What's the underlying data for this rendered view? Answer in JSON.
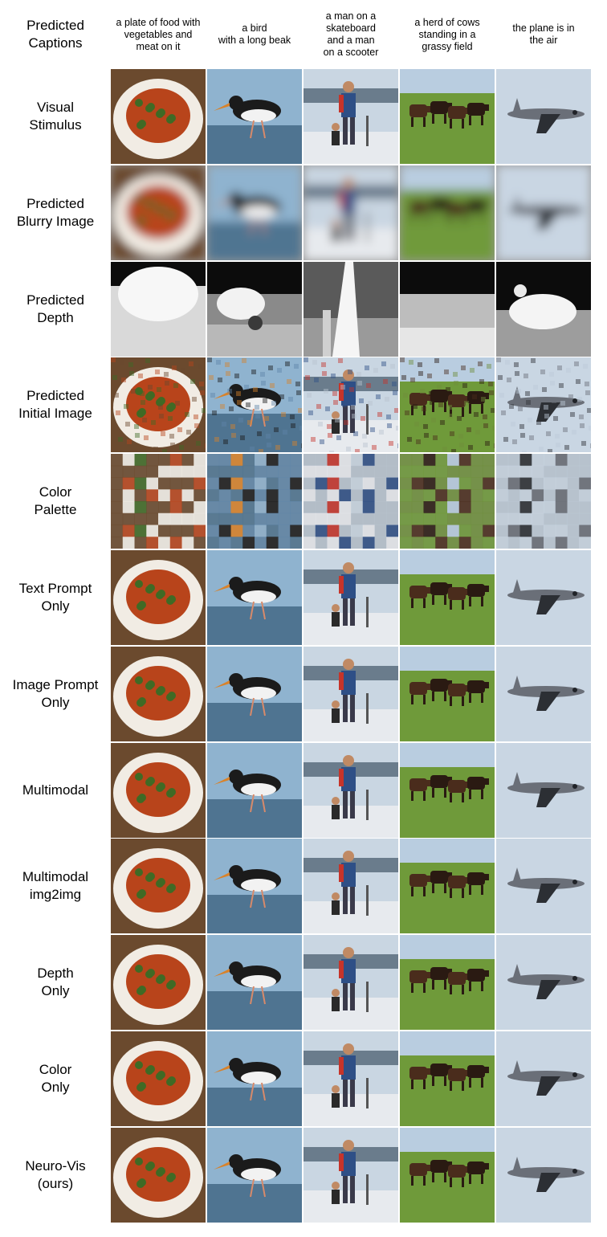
{
  "header_label": "Predicted\nCaptions",
  "captions": [
    "a plate of food with\nvegetables and\nmeat on it",
    "a bird\nwith a long beak",
    "a man on a\nskateboard\nand a man\non a scooter",
    "a herd of cows\nstanding in a\ngrassy field",
    "the plane is in\nthe air"
  ],
  "subjects": [
    "food-plate",
    "bird",
    "skier-scooter",
    "cows",
    "plane"
  ],
  "rows": [
    {
      "label": "Visual\nStimulus",
      "style": "photo"
    },
    {
      "label": "Predicted\nBlurry Image",
      "style": "blurry"
    },
    {
      "label": "Predicted\nDepth",
      "style": "depth"
    },
    {
      "label": "Predicted\nInitial Image",
      "style": "initial"
    },
    {
      "label": "Color\nPalette",
      "style": "palette"
    },
    {
      "label": "Text Prompt\nOnly",
      "style": "photo"
    },
    {
      "label": "Image Prompt\nOnly",
      "style": "photo"
    },
    {
      "label": "Multimodal",
      "style": "photo"
    },
    {
      "label": "Multimodal\nimg2img",
      "style": "photo"
    },
    {
      "label": "Depth\nOnly",
      "style": "photo"
    },
    {
      "label": "Color\nOnly",
      "style": "photo"
    },
    {
      "label": "Neuro-Vis\n(ours)",
      "style": "photo"
    }
  ],
  "colors": {
    "food-plate": {
      "bg": "#6b4a2e",
      "plate": "#f1ece4",
      "main": "#b8441b",
      "accent": "#3f6a25",
      "sky": "#6b4a2e",
      "ground": "#6b4a2e"
    },
    "bird": {
      "bg": "#5f86a8",
      "plate": "#5f86a8",
      "main": "#1b1b1b",
      "accent": "#d8822a",
      "sky": "#8fb3cf",
      "ground": "#4f7491"
    },
    "skier-scooter": {
      "bg": "#b7c3cf",
      "plate": "#b7c3cf",
      "main": "#2e4f86",
      "accent": "#c6342a",
      "sky": "#c9d6e2",
      "ground": "#e7eaee"
    },
    "cows": {
      "bg": "#6f8f3c",
      "plate": "#6f8f3c",
      "main": "#4a2c1c",
      "accent": "#2a1a12",
      "sky": "#b9cde0",
      "ground": "#6f9a3a"
    },
    "plane": {
      "bg": "#bcc9d6",
      "plate": "#bcc9d6",
      "main": "#6a6f78",
      "accent": "#2c2f34",
      "sky": "#c9d6e3",
      "ground": "#c9d6e3"
    }
  }
}
